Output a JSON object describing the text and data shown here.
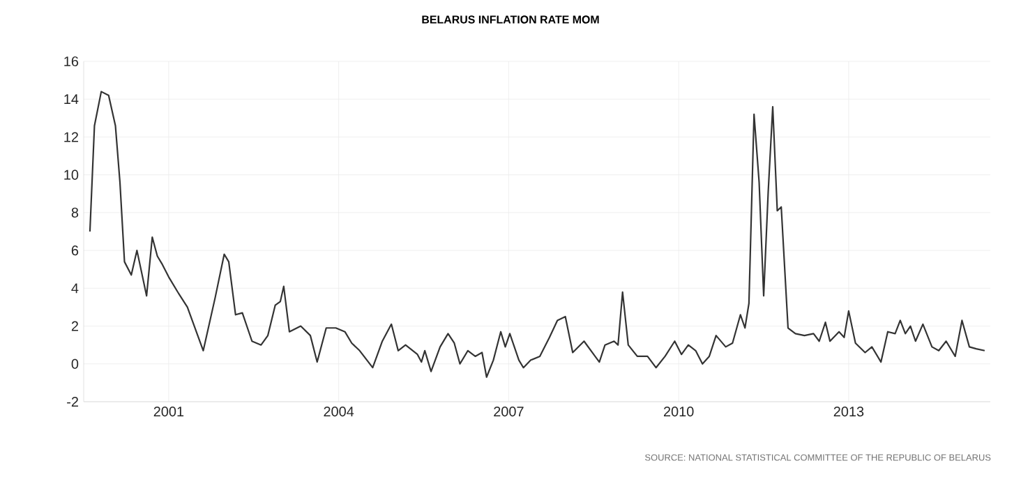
{
  "chart_data": {
    "type": "line",
    "title": "BELARUS INFLATION RATE MOM",
    "annotations": [
      "SOURCE: NATIONAL STATISTICAL COMMITTEE OF THE REPUBLIC OF BELARUS"
    ],
    "x": [
      1999.61,
      1999.69,
      1999.81,
      1999.94,
      2000.06,
      2000.14,
      2000.22,
      2000.34,
      2000.44,
      2000.61,
      2000.71,
      2000.8,
      2000.88,
      2001.0,
      2001.16,
      2001.33,
      2001.61,
      2001.82,
      2001.98,
      2002.06,
      2002.18,
      2002.3,
      2002.47,
      2002.63,
      2002.75,
      2002.88,
      2002.97,
      2003.03,
      2003.13,
      2003.33,
      2003.5,
      2003.62,
      2003.78,
      2003.95,
      2004.11,
      2004.23,
      2004.37,
      2004.6,
      2004.77,
      2004.93,
      2005.05,
      2005.18,
      2005.39,
      2005.46,
      2005.52,
      2005.63,
      2005.79,
      2005.93,
      2006.04,
      2006.14,
      2006.28,
      2006.41,
      2006.53,
      2006.61,
      2006.73,
      2006.86,
      2006.94,
      2007.02,
      2007.18,
      2007.26,
      2007.39,
      2007.55,
      2007.72,
      2007.86,
      2008.0,
      2008.13,
      2008.33,
      2008.5,
      2008.6,
      2008.7,
      2008.86,
      2008.93,
      2009.01,
      2009.11,
      2009.27,
      2009.45,
      2009.6,
      2009.76,
      2009.93,
      2010.05,
      2010.17,
      2010.3,
      2010.42,
      2010.54,
      2010.66,
      2010.83,
      2010.95,
      2011.09,
      2011.17,
      2011.24,
      2011.33,
      2011.42,
      2011.5,
      2011.58,
      2011.66,
      2011.74,
      2011.81,
      2011.93,
      2012.06,
      2012.22,
      2012.38,
      2012.48,
      2012.59,
      2012.67,
      2012.83,
      2012.92,
      2013.0,
      2013.12,
      2013.29,
      2013.41,
      2013.49,
      2013.57,
      2013.69,
      2013.82,
      2013.91,
      2014.0,
      2014.09,
      2014.18,
      2014.31,
      2014.47,
      2014.59,
      2014.72,
      2014.88,
      2015.0,
      2015.13,
      2015.25,
      2015.4
    ],
    "series": [
      {
        "color": "#333333",
        "values": [
          7.0,
          12.6,
          14.4,
          14.2,
          12.6,
          9.6,
          5.4,
          4.7,
          6.0,
          3.6,
          6.7,
          5.7,
          5.3,
          4.6,
          3.8,
          3.0,
          0.7,
          3.5,
          5.8,
          5.4,
          2.6,
          2.7,
          1.2,
          1.0,
          1.5,
          3.1,
          3.3,
          4.1,
          1.7,
          2.0,
          1.5,
          0.1,
          1.9,
          1.9,
          1.7,
          1.1,
          0.7,
          -0.2,
          1.2,
          2.1,
          0.7,
          1.0,
          0.5,
          0.1,
          0.7,
          -0.4,
          0.9,
          1.6,
          1.1,
          0.0,
          0.7,
          0.4,
          0.6,
          -0.7,
          0.2,
          1.7,
          0.9,
          1.6,
          0.2,
          -0.2,
          0.2,
          0.4,
          1.4,
          2.3,
          2.5,
          0.6,
          1.2,
          0.5,
          0.1,
          1.0,
          1.2,
          1.0,
          3.8,
          1.0,
          0.4,
          0.4,
          -0.2,
          0.4,
          1.2,
          0.5,
          1.0,
          0.7,
          0.0,
          0.4,
          1.5,
          0.9,
          1.1,
          2.6,
          1.9,
          3.2,
          13.2,
          9.6,
          3.6,
          9.1,
          13.6,
          8.1,
          8.3,
          1.9,
          1.6,
          1.5,
          1.6,
          1.2,
          2.2,
          1.2,
          1.7,
          1.4,
          2.8,
          1.1,
          0.6,
          0.9,
          0.5,
          0.1,
          1.7,
          1.6,
          2.3,
          1.6,
          2.0,
          1.2,
          2.1,
          0.9,
          0.7,
          1.2,
          0.4,
          2.3,
          0.9,
          0.8,
          0.7
        ]
      }
    ],
    "xlim": [
      1999.5,
      2015.5
    ],
    "ylim": [
      -2,
      16
    ],
    "xticks": [
      2001,
      2004,
      2007,
      2010,
      2013
    ],
    "yticks": [
      -2,
      0,
      2,
      4,
      6,
      8,
      10,
      12,
      14,
      16
    ],
    "grid": true,
    "marker": "none",
    "line_style": "solid"
  }
}
